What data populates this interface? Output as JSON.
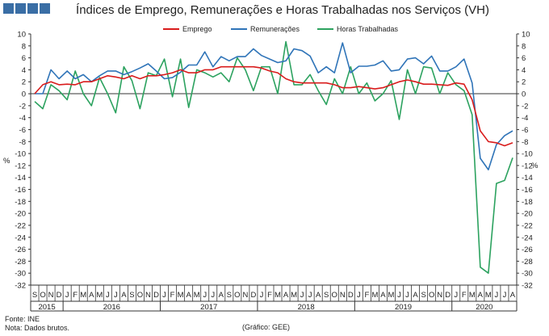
{
  "title": "Índices de Emprego,  Remunerações e Horas Trabalhadas nos Serviços (VH)",
  "brand_color": "#3a6ea5",
  "footer": {
    "source": "Fonte:  INE",
    "note": "Nota: Dados brutos.",
    "credit": "(Gráfico:  GEE)"
  },
  "chart_data": {
    "type": "line",
    "y_unit_left": "%",
    "y_unit_right": "%",
    "ylim": [
      -32,
      10
    ],
    "y_ticks": [
      10,
      8,
      6,
      4,
      2,
      0,
      -2,
      -4,
      -6,
      -8,
      -10,
      -12,
      -14,
      -16,
      -18,
      -20,
      -22,
      -24,
      -26,
      -28,
      -30,
      -32
    ],
    "grid": false,
    "legend_position": "top-center",
    "months": [
      "S",
      "O",
      "N",
      "D",
      "J",
      "F",
      "M",
      "A",
      "M",
      "J",
      "J",
      "A",
      "S",
      "O",
      "N",
      "D",
      "J",
      "F",
      "M",
      "A",
      "M",
      "J",
      "J",
      "A",
      "S",
      "O",
      "N",
      "D",
      "J",
      "F",
      "M",
      "A",
      "M",
      "J",
      "J",
      "A",
      "S",
      "O",
      "N",
      "D",
      "J",
      "F",
      "M",
      "A",
      "M",
      "J",
      "J",
      "A",
      "S",
      "O",
      "N",
      "D",
      "J",
      "F",
      "M",
      "A",
      "M",
      "J",
      "J",
      "A"
    ],
    "years": [
      {
        "label": "2015",
        "start": 0,
        "end": 4
      },
      {
        "label": "2016",
        "start": 4,
        "end": 16
      },
      {
        "label": "2017",
        "start": 16,
        "end": 28
      },
      {
        "label": "2018",
        "start": 28,
        "end": 40
      },
      {
        "label": "2019",
        "start": 40,
        "end": 52
      },
      {
        "label": "2020",
        "start": 52,
        "end": 60
      }
    ],
    "series": [
      {
        "name": "Emprego",
        "color": "#d91c1c",
        "values": [
          0.0,
          1.5,
          2.0,
          1.5,
          1.6,
          1.5,
          2.0,
          2.0,
          2.5,
          3.0,
          2.8,
          2.5,
          3.0,
          2.5,
          3.0,
          3.0,
          3.2,
          3.5,
          4.0,
          3.5,
          3.5,
          4.0,
          4.0,
          4.5,
          4.5,
          4.5,
          4.5,
          4.5,
          4.3,
          3.8,
          3.5,
          2.5,
          2.0,
          1.8,
          1.8,
          1.8,
          1.8,
          1.5,
          1.0,
          1.0,
          1.2,
          1.0,
          0.8,
          1.0,
          1.5,
          2.0,
          2.3,
          2.0,
          1.6,
          1.6,
          1.5,
          1.4,
          1.8,
          1.6,
          -1.0,
          -6.2,
          -8.0,
          -8.2,
          -8.7,
          -8.2
        ]
      },
      {
        "name": "Remunerações",
        "color": "#2f74b8",
        "values": [
          0.0,
          0.0,
          4.0,
          2.5,
          3.8,
          2.5,
          3.2,
          2.0,
          3.0,
          3.8,
          3.8,
          3.2,
          3.7,
          4.3,
          5.0,
          3.8,
          2.5,
          2.7,
          3.6,
          4.8,
          4.8,
          7.0,
          4.5,
          6.2,
          5.5,
          6.2,
          6.2,
          7.5,
          6.4,
          5.8,
          5.2,
          5.5,
          7.5,
          7.2,
          6.3,
          3.5,
          4.5,
          3.5,
          8.5,
          3.5,
          4.6,
          4.6,
          4.8,
          5.5,
          3.8,
          4.0,
          5.8,
          6.0,
          5.0,
          6.3,
          3.8,
          3.8,
          4.5,
          5.8,
          1.8,
          -10.8,
          -12.7,
          -8.5,
          -7.0,
          -6.2
        ]
      },
      {
        "name": "Horas Trabalhadas",
        "color": "#2ca25f",
        "values": [
          -1.3,
          -2.5,
          1.5,
          0.5,
          -1.0,
          3.8,
          0.0,
          -2.0,
          2.7,
          0.0,
          -3.2,
          4.5,
          2.2,
          -2.5,
          3.5,
          3.0,
          5.8,
          -0.5,
          5.8,
          -2.3,
          4.0,
          3.5,
          2.8,
          3.5,
          2.0,
          6.0,
          4.0,
          0.5,
          4.5,
          4.5,
          0.0,
          8.7,
          1.5,
          1.5,
          3.2,
          0.5,
          -1.8,
          2.5,
          0.0,
          4.5,
          0.0,
          1.8,
          -1.2,
          0.0,
          2.2,
          -4.3,
          4.0,
          0.0,
          4.5,
          4.3,
          0.0,
          3.5,
          1.5,
          0.5,
          -3.5,
          -29.0,
          -30.0,
          -15.0,
          -14.5,
          -10.7
        ]
      }
    ]
  }
}
